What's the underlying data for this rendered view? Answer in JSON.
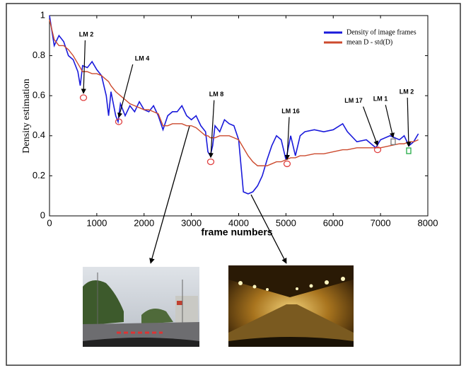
{
  "chart_data": {
    "type": "line",
    "xlabel": "frame numbers",
    "ylabel": "Density estimation",
    "x": [
      0,
      100,
      200,
      300,
      400,
      500,
      600,
      650,
      700,
      800,
      900,
      1000,
      1100,
      1200,
      1250,
      1300,
      1400,
      1450,
      1500,
      1600,
      1700,
      1800,
      1900,
      2000,
      2100,
      2200,
      2300,
      2400,
      2500,
      2600,
      2700,
      2800,
      2900,
      3000,
      3100,
      3200,
      3300,
      3350,
      3400,
      3450,
      3500,
      3600,
      3700,
      3800,
      3900,
      4000,
      4100,
      4200,
      4300,
      4400,
      4500,
      4600,
      4700,
      4800,
      4900,
      5000,
      5100,
      5200,
      5300,
      5400,
      5600,
      5800,
      6000,
      6200,
      6300,
      6500,
      6700,
      6900,
      7000,
      7200,
      7400,
      7500,
      7600,
      7700,
      7800
    ],
    "series": [
      {
        "name": "Density of image frames",
        "color": "#1a1adb",
        "values": [
          1.0,
          0.85,
          0.9,
          0.87,
          0.8,
          0.78,
          0.72,
          0.65,
          0.75,
          0.74,
          0.77,
          0.73,
          0.7,
          0.6,
          0.5,
          0.62,
          0.5,
          0.47,
          0.56,
          0.5,
          0.55,
          0.52,
          0.57,
          0.53,
          0.52,
          0.55,
          0.5,
          0.43,
          0.5,
          0.52,
          0.52,
          0.55,
          0.5,
          0.48,
          0.5,
          0.45,
          0.42,
          0.32,
          0.3,
          0.35,
          0.45,
          0.42,
          0.48,
          0.46,
          0.45,
          0.38,
          0.12,
          0.11,
          0.12,
          0.15,
          0.2,
          0.28,
          0.35,
          0.4,
          0.38,
          0.28,
          0.4,
          0.3,
          0.4,
          0.42,
          0.43,
          0.42,
          0.43,
          0.46,
          0.42,
          0.37,
          0.38,
          0.34,
          0.38,
          0.4,
          0.38,
          0.4,
          0.35,
          0.37,
          0.41
        ]
      },
      {
        "name": "mean D - std(D)",
        "color": "#cc4a2e",
        "values": [
          0.98,
          0.88,
          0.85,
          0.85,
          0.83,
          0.8,
          0.76,
          0.74,
          0.72,
          0.72,
          0.71,
          0.71,
          0.7,
          0.68,
          0.67,
          0.65,
          0.62,
          0.61,
          0.6,
          0.58,
          0.56,
          0.55,
          0.54,
          0.53,
          0.53,
          0.52,
          0.51,
          0.45,
          0.45,
          0.46,
          0.46,
          0.46,
          0.45,
          0.45,
          0.44,
          0.42,
          0.4,
          0.4,
          0.39,
          0.39,
          0.39,
          0.4,
          0.4,
          0.4,
          0.39,
          0.38,
          0.34,
          0.3,
          0.27,
          0.25,
          0.25,
          0.25,
          0.26,
          0.27,
          0.27,
          0.28,
          0.29,
          0.29,
          0.3,
          0.3,
          0.31,
          0.31,
          0.32,
          0.33,
          0.33,
          0.34,
          0.34,
          0.34,
          0.34,
          0.35,
          0.36,
          0.36,
          0.37,
          0.37,
          0.38
        ]
      }
    ],
    "xlim": [
      0,
      8000
    ],
    "xticks": [
      0,
      1000,
      2000,
      3000,
      4000,
      5000,
      6000,
      7000,
      8000
    ],
    "ylim": [
      0,
      1
    ],
    "yticks": [
      0,
      0.2,
      0.4,
      0.6,
      0.8,
      1
    ],
    "legend": "top-right",
    "annotations": [
      {
        "text": "LM 2",
        "x": 718,
        "y": 0.59,
        "marker": "circle",
        "color": "#e04040"
      },
      {
        "text": "LM 4",
        "x": 1465,
        "y": 0.47,
        "marker": "circle",
        "color": "#e04040"
      },
      {
        "text": "LM 8",
        "x": 3409,
        "y": 0.27,
        "marker": "circle",
        "color": "#e04040"
      },
      {
        "text": "LM 16",
        "x": 5024,
        "y": 0.26,
        "marker": "circle",
        "color": "#e04040"
      },
      {
        "text": "LM 17",
        "x": 6938,
        "y": 0.33,
        "marker": "circle",
        "color": "#e04040"
      },
      {
        "text": "LM 1",
        "x": 7267,
        "y": 0.37,
        "marker": "square",
        "color": "#777777"
      },
      {
        "text": "LM 2",
        "x": 7596,
        "y": 0.325,
        "marker": "square",
        "color": "#22aa44"
      }
    ]
  }
}
